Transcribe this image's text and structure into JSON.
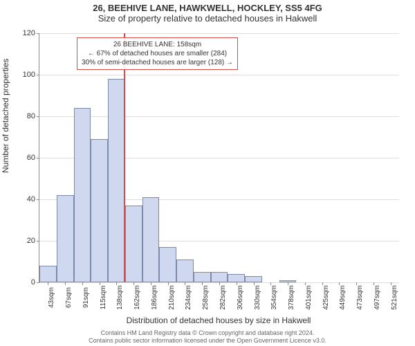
{
  "title": "26, BEEHIVE LANE, HAWKWELL, HOCKLEY, SS5 4FG",
  "subtitle": "Size of property relative to detached houses in Hakwell",
  "y_axis_label": "Number of detached properties",
  "x_axis_label": "Distribution of detached houses by size in Hakwell",
  "footer_line1": "Contains HM Land Registry data © Crown copyright and database right 2024.",
  "footer_line2": "Contains public sector information licensed under the Open Government Licence v3.0.",
  "annotation": {
    "line1": "26 BEEHIVE LANE: 158sqm",
    "line2": "← 67% of detached houses are smaller (284)",
    "line3": "30% of semi-detached houses are larger (128) →"
  },
  "chart": {
    "type": "histogram",
    "ylim": [
      0,
      120
    ],
    "yticks": [
      0,
      20,
      40,
      60,
      80,
      100,
      120
    ],
    "bar_fill": "#cfd8ee",
    "bar_stroke": "#7a8aa8",
    "grid_color": "#dddddd",
    "axis_color": "#888888",
    "marker_color": "#d94a4a",
    "marker_x_idx": 5,
    "x_labels": [
      "43sqm",
      "67sqm",
      "91sqm",
      "115sqm",
      "138sqm",
      "162sqm",
      "186sqm",
      "210sqm",
      "234sqm",
      "258sqm",
      "282sqm",
      "306sqm",
      "330sqm",
      "354sqm",
      "378sqm",
      "401sqm",
      "425sqm",
      "449sqm",
      "473sqm",
      "497sqm",
      "521sqm"
    ],
    "values": [
      8,
      42,
      84,
      69,
      98,
      37,
      41,
      17,
      11,
      5,
      5,
      4,
      3,
      0,
      1,
      0,
      0,
      0,
      0,
      0,
      0
    ]
  }
}
